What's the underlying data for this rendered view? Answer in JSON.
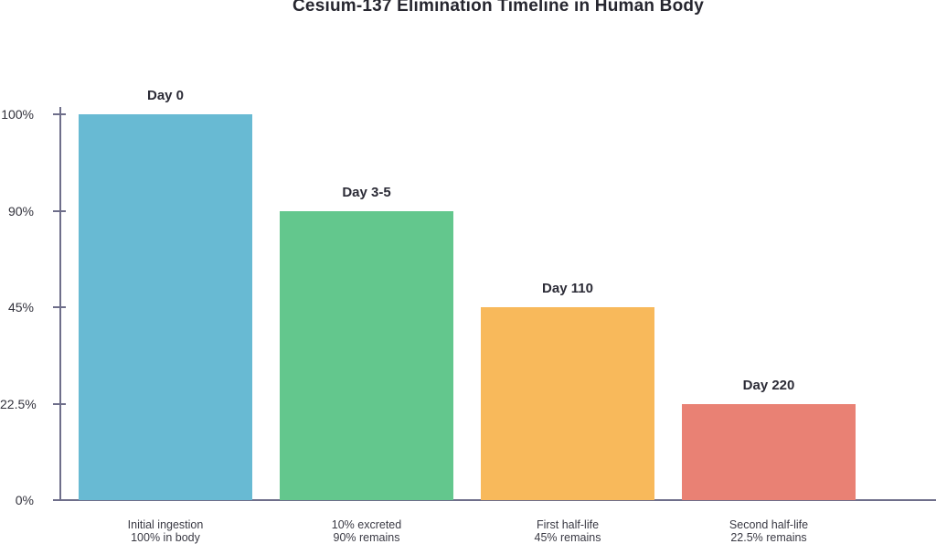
{
  "chart_data": {
    "type": "bar",
    "title": "Cesium-137 Elimination Timeline in Human Body",
    "xlabel": "",
    "ylabel": "",
    "ylim": [
      0,
      100
    ],
    "grid": false,
    "legend": false,
    "y_axis": {
      "tick_labels": [
        "100%",
        "90%",
        "45%",
        "22.5%",
        "0%"
      ],
      "tick_values": [
        100,
        90,
        45,
        22.5,
        0
      ],
      "scale": "ordinal-evenly-spaced-ticks"
    },
    "categories": [
      "Initial ingestion",
      "10% excreted",
      "First half-life",
      "Second half-life"
    ],
    "values": [
      100,
      90,
      45,
      22.5
    ],
    "bars": [
      {
        "label": "Day 0",
        "value": 100,
        "color": "#68BAD3",
        "category_line1": "Initial ingestion",
        "category_line2": "100% in body"
      },
      {
        "label": "Day 3-5",
        "value": 90,
        "color": "#63C78D",
        "category_line1": "10% excreted",
        "category_line2": "90% remains"
      },
      {
        "label": "Day 110",
        "value": 45,
        "color": "#F8B95B",
        "category_line1": "First half-life",
        "category_line2": "45% remains"
      },
      {
        "label": "Day 220",
        "value": 22.5,
        "color": "#E98174",
        "category_line1": "Second half-life",
        "category_line2": "22.5% remains"
      }
    ],
    "colors": {
      "axis": "#6E6E8A",
      "title_text": "#26262F",
      "bar_label_text": "#2B2B36",
      "tick_label_text": "#32323C",
      "category_label_text": "#3A3A44",
      "background": "#FFFFFF"
    }
  }
}
